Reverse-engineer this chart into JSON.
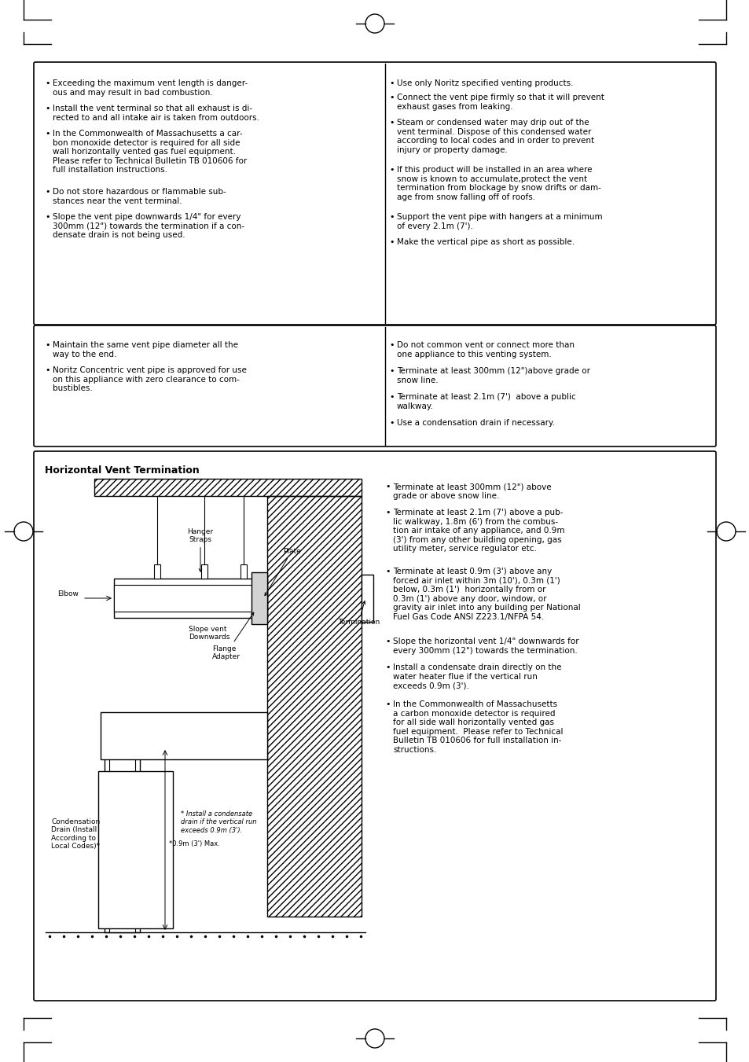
{
  "bg_color": "#ffffff",
  "text_color": "#000000",
  "box1_left": [
    "Exceeding the maximum vent length is danger-\nous and may result in bad combustion.",
    "Install the vent terminal so that all exhaust is di-\nrected to and all intake air is taken from outdoors.",
    "In the Commonwealth of Massachusetts a car-\nbon monoxide detector is required for all side\nwall horizontally vented gas fuel equipment.\nPlease refer to Technical Bulletin TB 010606 for\nfull installation instructions.",
    "Do not store hazardous or flammable sub-\nstances near the vent terminal.",
    "Slope the vent pipe downwards 1/4\" for every\n300mm (12\") towards the termination if a con-\ndensate drain is not being used."
  ],
  "box1_right": [
    "Use only Noritz specified venting products.",
    "Connect the vent pipe firmly so that it will prevent\nexhaust gases from leaking.",
    "Steam or condensed water may drip out of the\nvent terminal. Dispose of this condensed water\naccording to local codes and in order to prevent\ninjury or property damage.",
    "If this product will be installed in an area where\nsnow is known to accumulate,protect the vent\ntermination from blockage by snow drifts or dam-\nage from snow falling off of roofs.",
    "Support the vent pipe with hangers at a minimum\nof every 2.1m (7').",
    "Make the vertical pipe as short as possible."
  ],
  "box2_left": [
    "Maintain the same vent pipe diameter all the\nway to the end.",
    "Noritz Concentric vent pipe is approved for use\non this appliance with zero clearance to com-\nbustibles."
  ],
  "box2_right": [
    "Do not common vent or connect more than\none appliance to this venting system.",
    "Terminate at least 300mm (12\")above grade or\nsnow line.",
    "Terminate at least 2.1m (7')  above a public\nwalkway.",
    "Use a condensation drain if necessary."
  ],
  "box3_title": "Horizontal Vent Termination",
  "box3_right": [
    "Terminate at least 300mm (12\") above\ngrade or above snow line.",
    "Terminate at least 2.1m (7') above a pub-\nlic walkway, 1.8m (6') from the combus-\ntion air intake of any appliance, and 0.9m\n(3') from any other building opening, gas\nutility meter, service regulator etc.",
    "Terminate at least 0.9m (3') above any\nforced air inlet within 3m (10'), 0.3m (1')\nbelow, 0.3m (1')  horizontally from or\n0.3m (1') above any door, window, or\ngravity air inlet into any building per National\nFuel Gas Code ANSI Z223.1/NFPA 54.",
    "Slope the horizontal vent 1/4\" downwards for\nevery 300mm (12\") towards the termination.",
    "Install a condensate drain directly on the\nwater heater flue if the vertical run\nexceeds 0.9m (3').",
    "In the Commonwealth of Massachusetts\na carbon monoxide detector is required\nfor all side wall horizontally vented gas\nfuel equipment.  Please refer to Technical\nBulletin TB 010606 for full installation in-\nstructions."
  ],
  "diagram_labels": {
    "hanger_straps": "Hanger\nStraps",
    "plate": "Plate",
    "elbow": "Elbow",
    "flange_adapter": "Flange\nAdapter",
    "slope_vent": "Slope vent\nDownwards",
    "termination": "Termination",
    "measurement": "*0.9m (3') Max.",
    "condensation": "Condensation\nDrain (Install\nAccording to\nLocal Codes)*",
    "install_note": "* Install a condensate\ndrain if the vertical run\nexceeds 0.9m (3')."
  }
}
